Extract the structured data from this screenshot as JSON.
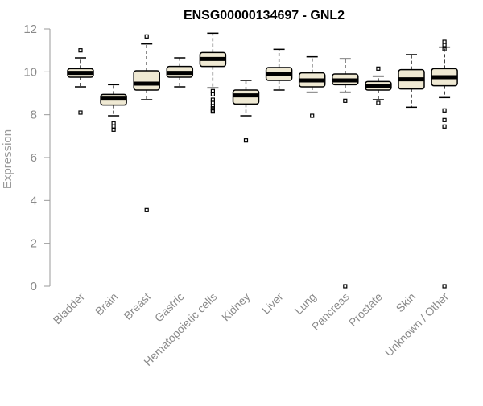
{
  "chart_data": {
    "type": "boxplot",
    "title": "ENSG00000134697 - GNL2",
    "ylabel": "Expression",
    "xlabel": "",
    "ylim": [
      0,
      12
    ],
    "yticks": [
      0,
      2,
      4,
      6,
      8,
      10,
      12
    ],
    "grid": false,
    "legend": "none",
    "categories": [
      "Bladder",
      "Brain",
      "Breast",
      "Gastric",
      "Hematopoietic cells",
      "Kidney",
      "Liver",
      "Lung",
      "Pancreas",
      "Prostate",
      "Skin",
      "Unknown / Other"
    ],
    "boxes": [
      {
        "category": "Bladder",
        "whisker_low": 9.3,
        "q1": 9.75,
        "median": 9.95,
        "q3": 10.15,
        "whisker_high": 10.65,
        "outliers": [
          8.1,
          11.0
        ]
      },
      {
        "category": "Brain",
        "whisker_low": 7.95,
        "q1": 8.45,
        "median": 8.75,
        "q3": 8.95,
        "whisker_high": 9.4,
        "outliers": [
          7.6,
          7.45,
          7.3
        ]
      },
      {
        "category": "Breast",
        "whisker_low": 8.7,
        "q1": 9.15,
        "median": 9.45,
        "q3": 10.05,
        "whisker_high": 11.3,
        "outliers": [
          3.55,
          11.65
        ]
      },
      {
        "category": "Gastric",
        "whisker_low": 9.3,
        "q1": 9.75,
        "median": 9.95,
        "q3": 10.25,
        "whisker_high": 10.65,
        "outliers": []
      },
      {
        "category": "Hematopoietic cells",
        "whisker_low": 9.25,
        "q1": 10.25,
        "median": 10.6,
        "q3": 10.9,
        "whisker_high": 11.8,
        "outliers": [
          9.1,
          8.95,
          8.7,
          8.55,
          8.4,
          8.3,
          8.2,
          8.15
        ]
      },
      {
        "category": "Kidney",
        "whisker_low": 7.95,
        "q1": 8.5,
        "median": 8.9,
        "q3": 9.15,
        "whisker_high": 9.6,
        "outliers": [
          6.8
        ]
      },
      {
        "category": "Liver",
        "whisker_low": 9.15,
        "q1": 9.6,
        "median": 9.9,
        "q3": 10.2,
        "whisker_high": 11.05,
        "outliers": []
      },
      {
        "category": "Lung",
        "whisker_low": 9.05,
        "q1": 9.3,
        "median": 9.6,
        "q3": 9.95,
        "whisker_high": 10.7,
        "outliers": [
          7.95
        ]
      },
      {
        "category": "Pancreas",
        "whisker_low": 9.05,
        "q1": 9.4,
        "median": 9.6,
        "q3": 9.9,
        "whisker_high": 10.6,
        "outliers": [
          8.65,
          0.0
        ]
      },
      {
        "category": "Prostate",
        "whisker_low": 8.7,
        "q1": 9.15,
        "median": 9.35,
        "q3": 9.55,
        "whisker_high": 9.8,
        "outliers": [
          10.15,
          8.55
        ]
      },
      {
        "category": "Skin",
        "whisker_low": 8.35,
        "q1": 9.2,
        "median": 9.65,
        "q3": 10.1,
        "whisker_high": 10.8,
        "outliers": []
      },
      {
        "category": "Unknown / Other",
        "whisker_low": 8.8,
        "q1": 9.35,
        "median": 9.75,
        "q3": 10.15,
        "whisker_high": 11.15,
        "outliers": [
          11.4,
          11.25,
          11.05,
          8.2,
          7.75,
          7.45,
          0.0
        ]
      }
    ],
    "colors": {
      "box_fill": "#efe9d3",
      "box_stroke": "#000000",
      "median": "#000000",
      "axis": "#9a9a9a",
      "text": "#8a8a8a"
    }
  }
}
